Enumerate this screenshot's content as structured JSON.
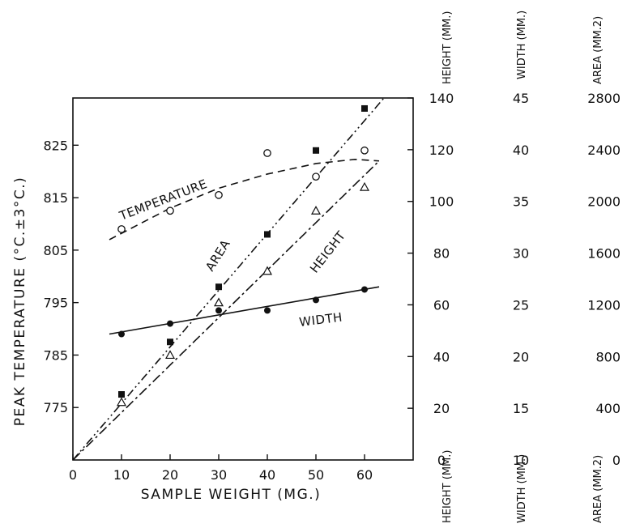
{
  "chart_data": {
    "type": "scatter",
    "xlabel": "SAMPLE WEIGHT (MG.)",
    "ylabel": "PEAK TEMPERATURE (°C.±3°C.)",
    "x_ticks": [
      0,
      10,
      20,
      30,
      40,
      50,
      60
    ],
    "xlim": [
      0,
      70
    ],
    "ylim": [
      765,
      834
    ],
    "y_ticks": [
      775,
      785,
      795,
      805,
      815,
      825
    ],
    "right_scales": [
      {
        "name": "HEIGHT (MM.)",
        "ticks": [
          "140",
          "120",
          "100",
          "80",
          "60",
          "40",
          "20",
          "0"
        ]
      },
      {
        "name": "WIDTH (MM.)",
        "ticks": [
          "45",
          "40",
          "35",
          "30",
          "25",
          "20",
          "15",
          "10"
        ]
      },
      {
        "name": "AREA (MM.2)",
        "ticks": [
          "2800",
          "2400",
          "2000",
          "1600",
          "1200",
          "800",
          "400",
          "0"
        ]
      }
    ],
    "series": [
      {
        "name": "TEMPERATURE",
        "marker": "open-circle",
        "line": "dashed",
        "x": [
          10,
          20,
          30,
          40,
          50,
          60
        ],
        "y": [
          809,
          812.5,
          815.5,
          823.5,
          819,
          824
        ]
      },
      {
        "name": "AREA",
        "marker": "filled-square",
        "line": "dash-dot-dot",
        "x": [
          10,
          20,
          30,
          40,
          50,
          60
        ],
        "y": [
          777.5,
          787.5,
          798,
          808,
          824,
          832
        ]
      },
      {
        "name": "HEIGHT",
        "marker": "open-triangle",
        "line": "dash-dot",
        "x": [
          10,
          20,
          30,
          40,
          50,
          60
        ],
        "y": [
          776,
          785,
          795,
          801,
          812.5,
          817
        ]
      },
      {
        "name": "WIDTH",
        "marker": "filled-circle",
        "line": "solid",
        "x": [
          10,
          20,
          30,
          40,
          50,
          60
        ],
        "y": [
          789,
          791,
          793.5,
          793.5,
          795.5,
          797.5
        ]
      }
    ]
  }
}
